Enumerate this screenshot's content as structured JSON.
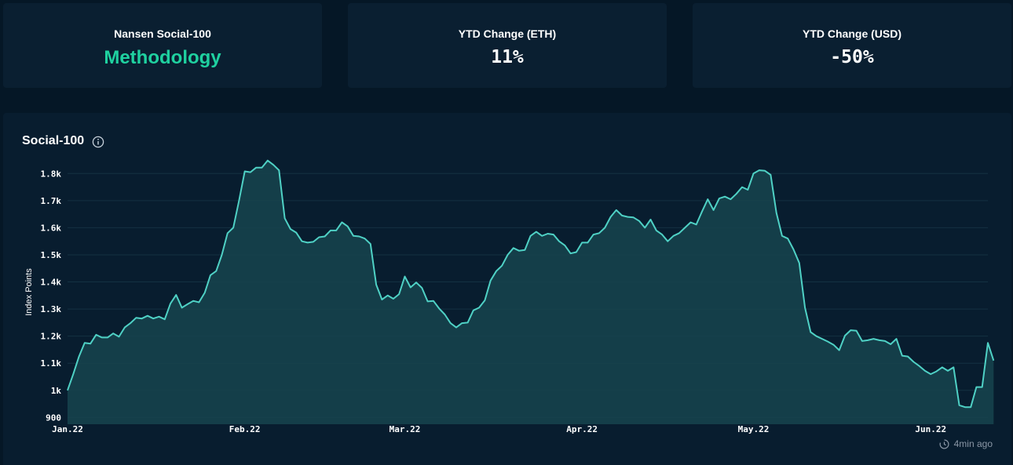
{
  "stats": [
    {
      "label": "Nansen Social-100",
      "value": "Methodology",
      "is_link": true
    },
    {
      "label": "YTD Change (ETH)",
      "value": "11%",
      "is_link": false
    },
    {
      "label": "YTD Change (USD)",
      "value": "-50%",
      "is_link": false
    }
  ],
  "panel": {
    "title": "Social-100",
    "updated": "4min ago",
    "info_icon": "info-icon",
    "clock_icon": "clock-icon"
  },
  "colors": {
    "line": "#4fd1c5",
    "area": "#16424d",
    "accent": "#1fd1a0",
    "background": "#051726"
  },
  "chart_data": {
    "type": "area",
    "title": "Social-100",
    "ylabel": "Index Points",
    "xlabel": "",
    "ylim": [
      875,
      1850
    ],
    "yticks": [
      900,
      1000,
      1100,
      1200,
      1300,
      1400,
      1500,
      1600,
      1700,
      1800
    ],
    "ytick_labels": [
      "900",
      "1k",
      "1.1k",
      "1.2k",
      "1.3k",
      "1.4k",
      "1.5k",
      "1.6k",
      "1.7k",
      "1.8k"
    ],
    "xlim": [
      "2022-01-01",
      "2022-06-11"
    ],
    "xticks": [
      "2022-01-01",
      "2022-02-01",
      "2022-03-01",
      "2022-04-01",
      "2022-05-01",
      "2022-06-01"
    ],
    "xtick_labels": [
      "Jan.22",
      "Feb.22",
      "Mar.22",
      "Apr.22",
      "May.22",
      "Jun.22"
    ],
    "grid": true,
    "series": [
      {
        "values": [
          [
            "2022-01-01",
            1000
          ],
          [
            "2022-01-02",
            1060
          ],
          [
            "2022-01-03",
            1125
          ],
          [
            "2022-01-04",
            1175
          ],
          [
            "2022-01-05",
            1172
          ],
          [
            "2022-01-06",
            1205
          ],
          [
            "2022-01-07",
            1195
          ],
          [
            "2022-01-08",
            1195
          ],
          [
            "2022-01-09",
            1210
          ],
          [
            "2022-01-10",
            1198
          ],
          [
            "2022-01-11",
            1232
          ],
          [
            "2022-01-12",
            1248
          ],
          [
            "2022-01-13",
            1268
          ],
          [
            "2022-01-14",
            1265
          ],
          [
            "2022-01-15",
            1275
          ],
          [
            "2022-01-16",
            1265
          ],
          [
            "2022-01-17",
            1272
          ],
          [
            "2022-01-18",
            1262
          ],
          [
            "2022-01-19",
            1320
          ],
          [
            "2022-01-20",
            1352
          ],
          [
            "2022-01-21",
            1305
          ],
          [
            "2022-01-22",
            1318
          ],
          [
            "2022-01-23",
            1330
          ],
          [
            "2022-01-24",
            1325
          ],
          [
            "2022-01-25",
            1360
          ],
          [
            "2022-01-26",
            1425
          ],
          [
            "2022-01-27",
            1440
          ],
          [
            "2022-01-28",
            1500
          ],
          [
            "2022-01-29",
            1580
          ],
          [
            "2022-01-30",
            1600
          ],
          [
            "2022-01-31",
            1700
          ],
          [
            "2022-02-01",
            1808
          ],
          [
            "2022-02-02",
            1805
          ],
          [
            "2022-02-03",
            1822
          ],
          [
            "2022-02-04",
            1822
          ],
          [
            "2022-02-05",
            1848
          ],
          [
            "2022-02-06",
            1832
          ],
          [
            "2022-02-07",
            1812
          ],
          [
            "2022-02-08",
            1635
          ],
          [
            "2022-02-09",
            1595
          ],
          [
            "2022-02-10",
            1582
          ],
          [
            "2022-02-11",
            1550
          ],
          [
            "2022-02-12",
            1545
          ],
          [
            "2022-02-13",
            1548
          ],
          [
            "2022-02-14",
            1565
          ],
          [
            "2022-02-15",
            1568
          ],
          [
            "2022-02-16",
            1590
          ],
          [
            "2022-02-17",
            1590
          ],
          [
            "2022-02-18",
            1620
          ],
          [
            "2022-02-19",
            1605
          ],
          [
            "2022-02-20",
            1570
          ],
          [
            "2022-02-21",
            1568
          ],
          [
            "2022-02-22",
            1560
          ],
          [
            "2022-02-23",
            1540
          ],
          [
            "2022-02-24",
            1390
          ],
          [
            "2022-02-25",
            1335
          ],
          [
            "2022-02-26",
            1350
          ],
          [
            "2022-02-27",
            1338
          ],
          [
            "2022-02-28",
            1355
          ],
          [
            "2022-03-01",
            1420
          ],
          [
            "2022-03-02",
            1380
          ],
          [
            "2022-03-03",
            1398
          ],
          [
            "2022-03-04",
            1378
          ],
          [
            "2022-03-05",
            1328
          ],
          [
            "2022-03-06",
            1330
          ],
          [
            "2022-03-07",
            1302
          ],
          [
            "2022-03-08",
            1280
          ],
          [
            "2022-03-09",
            1248
          ],
          [
            "2022-03-10",
            1232
          ],
          [
            "2022-03-11",
            1248
          ],
          [
            "2022-03-12",
            1250
          ],
          [
            "2022-03-13",
            1295
          ],
          [
            "2022-03-14",
            1305
          ],
          [
            "2022-03-15",
            1332
          ],
          [
            "2022-03-16",
            1405
          ],
          [
            "2022-03-17",
            1440
          ],
          [
            "2022-03-18",
            1460
          ],
          [
            "2022-03-19",
            1500
          ],
          [
            "2022-03-20",
            1525
          ],
          [
            "2022-03-21",
            1515
          ],
          [
            "2022-03-22",
            1518
          ],
          [
            "2022-03-23",
            1570
          ],
          [
            "2022-03-24",
            1585
          ],
          [
            "2022-03-25",
            1570
          ],
          [
            "2022-03-26",
            1578
          ],
          [
            "2022-03-27",
            1575
          ],
          [
            "2022-03-28",
            1550
          ],
          [
            "2022-03-29",
            1535
          ],
          [
            "2022-03-30",
            1505
          ],
          [
            "2022-03-31",
            1510
          ],
          [
            "2022-04-01",
            1545
          ],
          [
            "2022-04-02",
            1545
          ],
          [
            "2022-04-03",
            1575
          ],
          [
            "2022-04-04",
            1580
          ],
          [
            "2022-04-05",
            1600
          ],
          [
            "2022-04-06",
            1640
          ],
          [
            "2022-04-07",
            1665
          ],
          [
            "2022-04-08",
            1645
          ],
          [
            "2022-04-09",
            1640
          ],
          [
            "2022-04-10",
            1638
          ],
          [
            "2022-04-11",
            1625
          ],
          [
            "2022-04-12",
            1600
          ],
          [
            "2022-04-13",
            1630
          ],
          [
            "2022-04-14",
            1590
          ],
          [
            "2022-04-15",
            1575
          ],
          [
            "2022-04-16",
            1550
          ],
          [
            "2022-04-17",
            1570
          ],
          [
            "2022-04-18",
            1580
          ],
          [
            "2022-04-19",
            1600
          ],
          [
            "2022-04-20",
            1620
          ],
          [
            "2022-04-21",
            1612
          ],
          [
            "2022-04-22",
            1660
          ],
          [
            "2022-04-23",
            1705
          ],
          [
            "2022-04-24",
            1665
          ],
          [
            "2022-04-25",
            1708
          ],
          [
            "2022-04-26",
            1715
          ],
          [
            "2022-04-27",
            1705
          ],
          [
            "2022-04-28",
            1725
          ],
          [
            "2022-04-29",
            1750
          ],
          [
            "2022-04-30",
            1740
          ],
          [
            "2022-05-01",
            1800
          ],
          [
            "2022-05-02",
            1812
          ],
          [
            "2022-05-03",
            1810
          ],
          [
            "2022-05-04",
            1795
          ],
          [
            "2022-05-05",
            1655
          ],
          [
            "2022-05-06",
            1570
          ],
          [
            "2022-05-07",
            1560
          ],
          [
            "2022-05-08",
            1520
          ],
          [
            "2022-05-09",
            1470
          ],
          [
            "2022-05-10",
            1305
          ],
          [
            "2022-05-11",
            1215
          ],
          [
            "2022-05-12",
            1200
          ],
          [
            "2022-05-13",
            1190
          ],
          [
            "2022-05-14",
            1180
          ],
          [
            "2022-05-15",
            1168
          ],
          [
            "2022-05-16",
            1148
          ],
          [
            "2022-05-17",
            1202
          ],
          [
            "2022-05-18",
            1222
          ],
          [
            "2022-05-19",
            1220
          ],
          [
            "2022-05-20",
            1182
          ],
          [
            "2022-05-21",
            1185
          ],
          [
            "2022-05-22",
            1190
          ],
          [
            "2022-05-23",
            1185
          ],
          [
            "2022-05-24",
            1182
          ],
          [
            "2022-05-25",
            1170
          ],
          [
            "2022-05-26",
            1190
          ],
          [
            "2022-05-27",
            1128
          ],
          [
            "2022-05-28",
            1125
          ],
          [
            "2022-05-29",
            1105
          ],
          [
            "2022-05-30",
            1090
          ],
          [
            "2022-05-31",
            1072
          ],
          [
            "2022-06-01",
            1060
          ],
          [
            "2022-06-02",
            1070
          ],
          [
            "2022-06-03",
            1085
          ],
          [
            "2022-06-04",
            1072
          ],
          [
            "2022-06-05",
            1085
          ],
          [
            "2022-06-06",
            945
          ],
          [
            "2022-06-07",
            938
          ],
          [
            "2022-06-08",
            938
          ],
          [
            "2022-06-09",
            1012
          ],
          [
            "2022-06-10",
            1012
          ],
          [
            "2022-06-11",
            1175
          ],
          [
            "2022-06-12",
            1110
          ]
        ]
      }
    ]
  }
}
